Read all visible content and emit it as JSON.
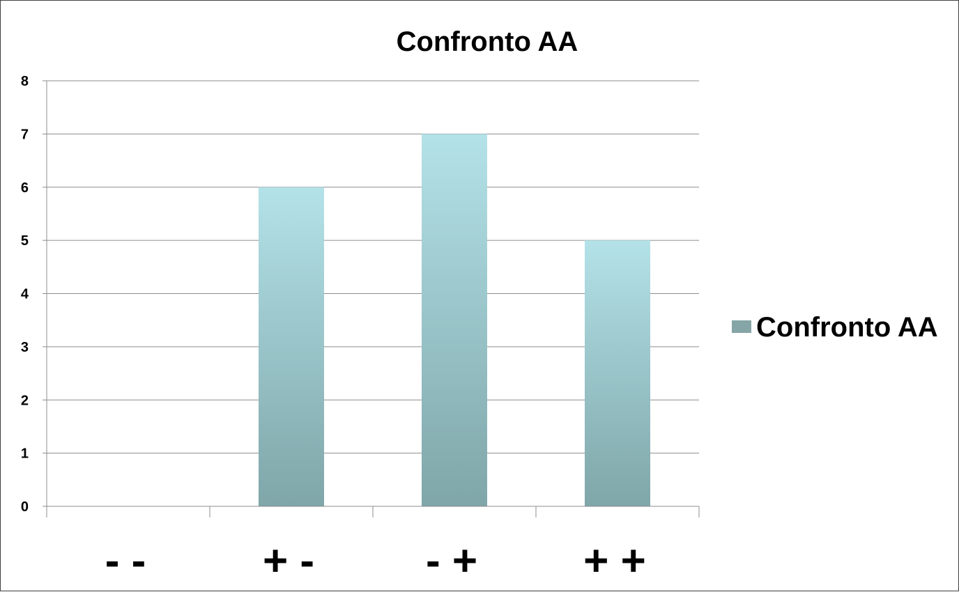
{
  "chart_data": {
    "type": "bar",
    "title": "Confronto AA",
    "categories": [
      "- -",
      "+ -",
      "- +",
      "+ +"
    ],
    "series": [
      {
        "name": "Confronto AA",
        "values": [
          0,
          6,
          7,
          5
        ]
      }
    ],
    "ylim": [
      0,
      8
    ],
    "yticks": [
      "0",
      "1",
      "2",
      "3",
      "4",
      "5",
      "6",
      "7",
      "8"
    ],
    "xlabel": "",
    "ylabel": "",
    "grid": true,
    "legend_position": "right",
    "colors": {
      "bar_top": "#b3e2e8",
      "bar_bottom": "#7fa6a9",
      "legend_swatch": "#86a5a6",
      "grid": "#8c8c8c",
      "axis": "#8c8c8c"
    }
  }
}
